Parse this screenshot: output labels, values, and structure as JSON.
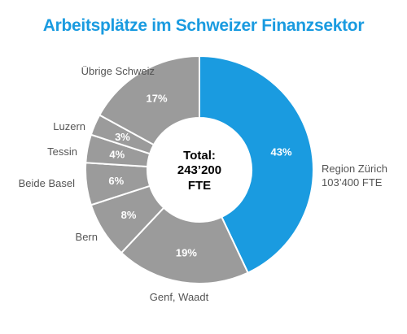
{
  "title": "Arbeitsplätze im Schweizer Finanzsektor",
  "colors": {
    "highlight": "#1a9be0",
    "other": "#9b9b9b",
    "separator": "#ffffff",
    "highlight_label": "#1a9be0",
    "label": "#555555"
  },
  "center_text": [
    "Total:",
    "243’200",
    "FTE"
  ],
  "chart_data": {
    "type": "pie",
    "title": "Arbeitsplätze im Schweizer Finanzsektor",
    "total_label": "Total: 243’200 FTE",
    "slices": [
      {
        "label": "Region Zürich",
        "sublabel": "103’400 FTE",
        "value": 43,
        "value_label": "43%",
        "highlight": true
      },
      {
        "label": "Genf, Waadt",
        "value": 19,
        "value_label": "19%"
      },
      {
        "label": "Bern",
        "value": 8,
        "value_label": "8%"
      },
      {
        "label": "Beide Basel",
        "value": 6,
        "value_label": "6%"
      },
      {
        "label": "Tessin",
        "value": 4,
        "value_label": "4%"
      },
      {
        "label": "Luzern",
        "value": 3,
        "value_label": "3%"
      },
      {
        "label": "Übrige Schweiz",
        "value": 17,
        "value_label": "17%"
      }
    ]
  }
}
